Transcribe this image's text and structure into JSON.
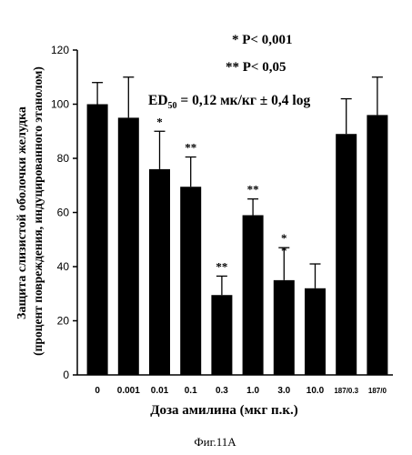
{
  "chart_data": {
    "type": "bar",
    "categories": [
      "0",
      "0.001",
      "0.01",
      "0.1",
      "0.3",
      "1.0",
      "3.0",
      "10.0",
      "187/0.3",
      "187/0"
    ],
    "values": [
      100,
      95,
      76,
      69.5,
      29.5,
      59,
      35,
      32,
      89,
      96
    ],
    "errors": [
      8,
      15,
      14,
      11,
      7,
      6,
      12,
      9,
      13,
      14
    ],
    "significance": [
      "",
      "",
      "*",
      "**",
      "**",
      "**",
      "*\n*",
      "",
      "",
      ""
    ],
    "ylim": [
      0,
      120
    ],
    "yticks": [
      0,
      20,
      40,
      60,
      80,
      100,
      120
    ],
    "ylabel_line1": "Защита слизистой оболочки желудка",
    "ylabel_line2": "(процент повреждения, индуцированного этанолом)",
    "xlabel": "Доза амилина (мкг п.к.)",
    "annotations": [
      "* P< 0,001",
      "** P< 0,05"
    ],
    "ed50_prefix": "ED",
    "ed50_sub": "50",
    "ed50_rest": " = 0,12 мк/кг ± 0,4 log",
    "bar_color": "#000000",
    "grid": false
  },
  "caption": "Фиг.11А"
}
